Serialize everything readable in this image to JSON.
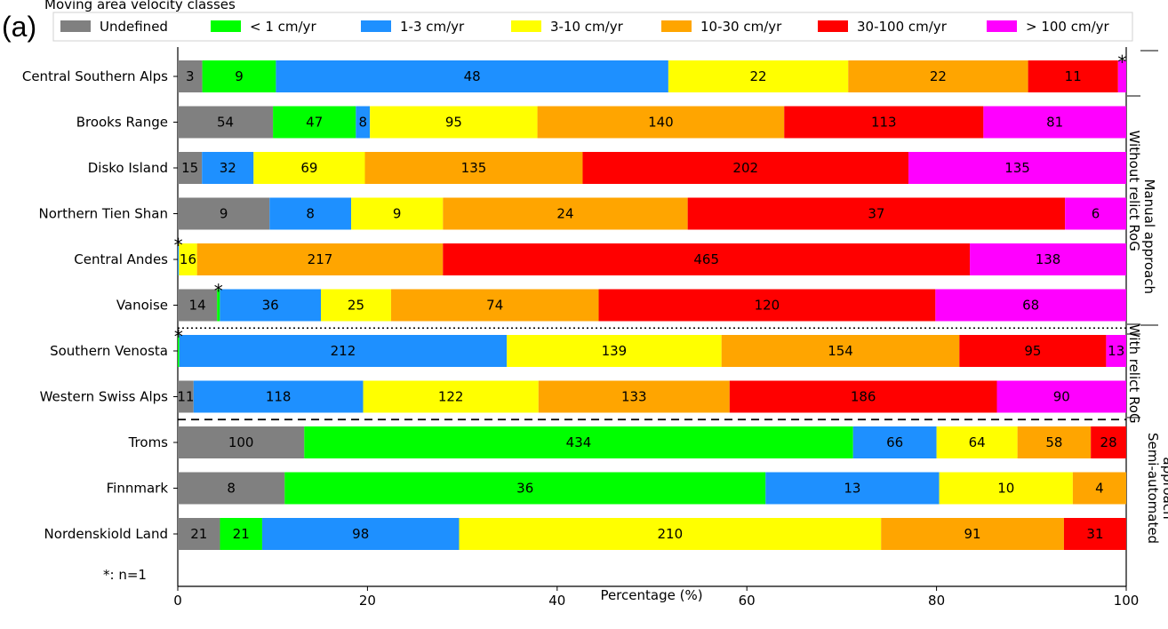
{
  "panel_label": "(a)",
  "footnote": "*: n=1",
  "colors": {
    "Undefined": "#808080",
    "< 1 cm/yr": "#00ff00",
    "1-3 cm/yr": "#1e90ff",
    "3-10 cm/yr": "#ffff00",
    "10-30 cm/yr": "#ffa500",
    "30-100 cm/yr": "#ff0000",
    "> 100 cm/yr": "#ff00ff"
  },
  "chart_data": {
    "type": "bar",
    "orientation": "horizontal",
    "stacked": true,
    "normalized_percent": true,
    "legend_title": "Moving area velocity classes",
    "legend_placement": "top",
    "xlabel": "Percentage (%)",
    "xlim": [
      0,
      100
    ],
    "xticks": [
      0,
      20,
      40,
      60,
      80,
      100
    ],
    "series_names": [
      "Undefined",
      "< 1 cm/yr",
      "1-3 cm/yr",
      "3-10 cm/yr",
      "10-30 cm/yr",
      "30-100 cm/yr",
      "> 100 cm/yr"
    ],
    "categories": [
      "Central Southern Alps",
      "Brooks Range",
      "Disko Island",
      "Northern Tien Shan",
      "Central Andes",
      "Vanoise",
      "Southern Venosta",
      "Western Swiss Alps",
      "Troms",
      "Finnmark",
      "Nordenskiold Land"
    ],
    "counts": [
      [
        3,
        9,
        48,
        22,
        22,
        11,
        1
      ],
      [
        54,
        47,
        8,
        95,
        140,
        113,
        81
      ],
      [
        15,
        0,
        32,
        69,
        135,
        202,
        135
      ],
      [
        9,
        0,
        8,
        9,
        24,
        37,
        6
      ],
      [
        0,
        0,
        1,
        16,
        217,
        465,
        138
      ],
      [
        14,
        1,
        36,
        25,
        74,
        120,
        68
      ],
      [
        0,
        1,
        212,
        139,
        154,
        95,
        13
      ],
      [
        11,
        0,
        118,
        122,
        133,
        186,
        90
      ],
      [
        100,
        434,
        66,
        64,
        58,
        28,
        0
      ],
      [
        8,
        36,
        13,
        10,
        4,
        0,
        0
      ],
      [
        21,
        21,
        98,
        210,
        91,
        31,
        0
      ]
    ],
    "labels": [
      [
        "3",
        "9",
        "48",
        "22",
        "22",
        "11",
        ""
      ],
      [
        "54",
        "47",
        "8",
        "95",
        "140",
        "113",
        "81"
      ],
      [
        "15",
        "",
        "32",
        "69",
        "135",
        "202",
        "135"
      ],
      [
        "9",
        "",
        "8",
        "9",
        "24",
        "37",
        "6"
      ],
      [
        "",
        "",
        "",
        "16",
        "217",
        "465",
        "138"
      ],
      [
        "14",
        "",
        "36",
        "25",
        "74",
        "120",
        "68"
      ],
      [
        "",
        "",
        "212",
        "139",
        "154",
        "95",
        "13"
      ],
      [
        "11",
        "",
        "118",
        "122",
        "133",
        "186",
        "90"
      ],
      [
        "100",
        "434",
        "66",
        "64",
        "58",
        "28",
        ""
      ],
      [
        "8",
        "36",
        "13",
        "10",
        "4",
        "",
        ""
      ],
      [
        "21",
        "21",
        "98",
        "210",
        "91",
        "31",
        ""
      ]
    ],
    "star_marks": [
      {
        "row": 0,
        "series": 6
      },
      {
        "row": 4,
        "series": 2
      },
      {
        "row": 5,
        "series": 1
      },
      {
        "row": 6,
        "series": 1
      }
    ],
    "star_symbol": "*",
    "separators": [
      {
        "after_row": 5,
        "style": "dotted"
      },
      {
        "after_row": 7,
        "style": "dashed"
      }
    ],
    "groups": [
      {
        "label": "Manual approach",
        "rows": [
          0,
          7
        ]
      },
      {
        "label": "Without relict RoG",
        "rows": [
          0,
          5
        ]
      },
      {
        "label": "With relict RoG",
        "rows": [
          6,
          7
        ]
      },
      {
        "label": "Semi-automated",
        "rows": [
          8,
          10
        ]
      },
      {
        "label": "approach",
        "rows": [
          8,
          10
        ]
      }
    ]
  }
}
